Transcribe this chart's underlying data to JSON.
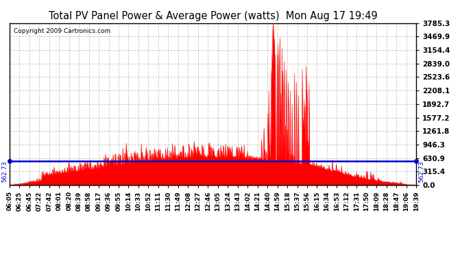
{
  "title": "Total PV Panel Power & Average Power (watts)  Mon Aug 17 19:49",
  "copyright": "Copyright 2009 Cartronics.com",
  "average_value": 562.73,
  "ylim": [
    0.0,
    3785.3
  ],
  "yticks": [
    0.0,
    315.4,
    630.9,
    946.3,
    1261.8,
    1577.2,
    1892.7,
    2208.1,
    2523.6,
    2839.0,
    3154.4,
    3469.9,
    3785.3
  ],
  "ytick_labels": [
    "0.0",
    "315.4",
    "630.9",
    "946.3",
    "1261.8",
    "1577.2",
    "1892.7",
    "2208.1",
    "2523.6",
    "2839.0",
    "3154.4",
    "3469.9",
    "3785.3"
  ],
  "bg_color": "#ffffff",
  "plot_bg_color": "#ffffff",
  "grid_color": "#aaaaaa",
  "fill_color": "#ff0000",
  "avg_line_color": "#0000cc",
  "title_color": "#000000",
  "copyright_color": "#000000",
  "xtick_labels": [
    "06:05",
    "06:25",
    "06:45",
    "07:22",
    "07:42",
    "08:01",
    "08:20",
    "08:39",
    "08:58",
    "09:17",
    "09:36",
    "09:55",
    "10:14",
    "10:33",
    "10:52",
    "11:11",
    "11:30",
    "11:49",
    "12:08",
    "12:27",
    "12:46",
    "13:05",
    "13:24",
    "13:43",
    "14:02",
    "14:21",
    "14:40",
    "14:59",
    "15:18",
    "15:37",
    "15:56",
    "16:15",
    "16:34",
    "16:53",
    "17:12",
    "17:31",
    "17:50",
    "18:09",
    "18:28",
    "18:47",
    "19:06",
    "19:39"
  ]
}
